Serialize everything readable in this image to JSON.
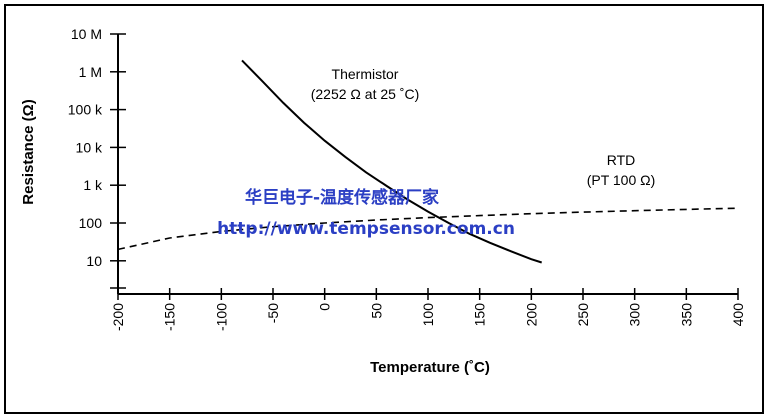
{
  "chart_data": {
    "type": "line",
    "xlabel": "Temperature (˚C)",
    "ylabel": "Resistance (Ω)",
    "xlim": [
      -200,
      400
    ],
    "x_ticks": [
      -200,
      -150,
      -100,
      -50,
      0,
      50,
      100,
      150,
      200,
      250,
      300,
      350,
      400
    ],
    "x_tick_labels": [
      "-200",
      "-150",
      "-100",
      "-50",
      "0",
      "50",
      "100",
      "150",
      "200",
      "250",
      "300",
      "350",
      "400"
    ],
    "y_scale": "log",
    "ylim": [
      1,
      10000000
    ],
    "y_ticks": [
      10,
      100,
      1000,
      10000,
      100000,
      1000000,
      10000000
    ],
    "y_tick_labels": [
      "10",
      "100",
      "1 k",
      "10 k",
      "100 k",
      "1 M",
      "10 M"
    ],
    "grid": false,
    "series": [
      {
        "name": "Thermistor",
        "style": "solid",
        "color": "#000000",
        "x": [
          -80,
          -60,
          -40,
          -20,
          0,
          20,
          40,
          60,
          80,
          100,
          120,
          140,
          160,
          180,
          200,
          210
        ],
        "y": [
          2000000,
          550000,
          150000,
          45000,
          15000,
          5600,
          2200,
          950,
          420,
          200,
          100,
          52,
          30,
          18,
          11,
          9
        ]
      },
      {
        "name": "RTD",
        "style": "dashed",
        "color": "#000000",
        "x": [
          -200,
          -150,
          -100,
          -50,
          0,
          50,
          100,
          150,
          200,
          250,
          300,
          350,
          400
        ],
        "y": [
          20,
          40,
          60,
          80,
          100,
          120,
          139,
          157,
          176,
          194,
          212,
          229,
          247
        ]
      }
    ],
    "annotations": [
      {
        "text": "Thermistor"
      },
      {
        "text": "(2252 Ω at 25 ˚C)"
      },
      {
        "text": "RTD"
      },
      {
        "text": "(PT 100  Ω)"
      }
    ]
  },
  "watermark": {
    "line1": "华巨电子-温度传感器厂家",
    "line2": "http://www.tempsensor.com.cn",
    "color": "#2b3fc4"
  }
}
